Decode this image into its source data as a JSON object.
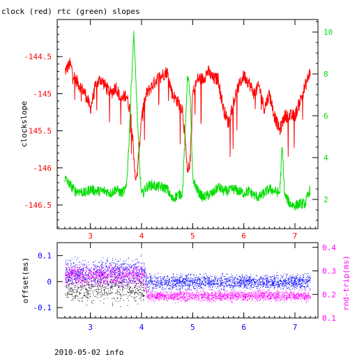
{
  "colors": {
    "red": "#ff0000",
    "green": "#00dd00",
    "blue": "#0000ff",
    "magenta": "#ff00ff",
    "black": "#000000"
  },
  "chart_data": [
    {
      "type": "line",
      "title": "clock (red) rtc (green) slopes",
      "ylabel": "clockslope",
      "xlim": [
        2.35,
        7.45
      ],
      "ylim": [
        -146.82,
        -144.0
      ],
      "y2lim": [
        0.6,
        10.6
      ],
      "x_ticks": [
        "3",
        "4",
        "5",
        "6",
        "7"
      ],
      "y_ticks": [
        "-144.5",
        "-145",
        "-145.5",
        "-146",
        "-146.5"
      ],
      "y2_ticks": [
        "2",
        "4",
        "6",
        "8",
        "10"
      ],
      "series": [
        {
          "color": "red",
          "axis": "left",
          "x": [
            2.5,
            2.6,
            2.7,
            2.8,
            2.9,
            3.0,
            3.1,
            3.2,
            3.3,
            3.4,
            3.5,
            3.6,
            3.7,
            3.8,
            3.85,
            3.9,
            3.95,
            4.0,
            4.1,
            4.2,
            4.3,
            4.4,
            4.5,
            4.6,
            4.7,
            4.8,
            4.85,
            4.9,
            4.95,
            5.0,
            5.1,
            5.2,
            5.3,
            5.4,
            5.5,
            5.6,
            5.7,
            5.8,
            5.9,
            6.0,
            6.1,
            6.2,
            6.3,
            6.4,
            6.5,
            6.6,
            6.7,
            6.8,
            6.9,
            7.0,
            7.1,
            7.2,
            7.3
          ],
          "y": [
            -144.7,
            -144.6,
            -144.8,
            -144.9,
            -145.0,
            -145.2,
            -144.9,
            -144.8,
            -144.9,
            -145.0,
            -144.9,
            -145.1,
            -145.0,
            -145.3,
            -145.9,
            -146.2,
            -145.8,
            -145.3,
            -145.0,
            -144.9,
            -144.8,
            -144.75,
            -144.7,
            -145.0,
            -145.1,
            -145.2,
            -145.6,
            -146.1,
            -145.9,
            -145.0,
            -144.8,
            -144.8,
            -144.7,
            -144.8,
            -144.8,
            -145.2,
            -145.4,
            -145.1,
            -144.9,
            -144.75,
            -144.85,
            -145.0,
            -144.9,
            -145.2,
            -145.0,
            -145.3,
            -145.5,
            -145.3,
            -145.3,
            -145.3,
            -145.1,
            -144.9,
            -144.7
          ]
        },
        {
          "color": "green",
          "axis": "right",
          "x": [
            2.5,
            2.6,
            2.7,
            2.8,
            2.9,
            3.0,
            3.1,
            3.2,
            3.3,
            3.4,
            3.5,
            3.6,
            3.7,
            3.75,
            3.8,
            3.85,
            3.9,
            3.95,
            4.0,
            4.1,
            4.2,
            4.3,
            4.4,
            4.5,
            4.6,
            4.7,
            4.8,
            4.85,
            4.9,
            4.95,
            5.0,
            5.1,
            5.2,
            5.3,
            5.4,
            5.5,
            5.6,
            5.7,
            5.8,
            5.9,
            6.0,
            6.1,
            6.2,
            6.3,
            6.4,
            6.5,
            6.6,
            6.7,
            6.75,
            6.8,
            6.9,
            7.0,
            7.1,
            7.2,
            7.3
          ],
          "y": [
            3.0,
            2.7,
            2.4,
            2.4,
            2.3,
            2.5,
            2.4,
            2.4,
            2.4,
            2.3,
            2.5,
            2.3,
            2.5,
            4.5,
            7.5,
            10.0,
            7.0,
            4.0,
            2.2,
            2.6,
            2.7,
            2.6,
            2.6,
            2.5,
            2.0,
            2.2,
            2.3,
            5.0,
            8.0,
            7.0,
            3.0,
            2.4,
            2.1,
            2.2,
            2.3,
            2.6,
            2.4,
            2.4,
            2.5,
            2.4,
            2.3,
            2.4,
            2.2,
            2.1,
            2.3,
            2.5,
            2.4,
            2.3,
            4.5,
            2.2,
            1.8,
            1.7,
            1.8,
            1.8,
            2.5
          ]
        }
      ]
    },
    {
      "type": "scatter",
      "ylabel": "offset(ms)",
      "y2label": "rnd-trip(ms)",
      "xlim": [
        2.35,
        7.45
      ],
      "ylim": [
        -0.14,
        0.15
      ],
      "y2lim": [
        0.1,
        0.42
      ],
      "x_ticks": [
        "3",
        "4",
        "5",
        "6",
        "7"
      ],
      "y_ticks": [
        "0.1",
        "0",
        "-0.1"
      ],
      "y2_ticks": [
        "0.4",
        "0.3",
        "0.2",
        "0.1"
      ],
      "series": [
        {
          "color": "blue",
          "axis": "left",
          "x": [
            2.5,
            4.05,
            4.1,
            7.3
          ],
          "center": [
            0.03,
            0.04,
            0.0,
            0.0
          ],
          "spread": [
            0.045,
            0.045,
            0.025,
            0.025
          ]
        },
        {
          "color": "magenta",
          "axis": "right",
          "x": [
            2.5,
            4.05,
            4.1,
            7.3
          ],
          "center": [
            0.28,
            0.28,
            0.195,
            0.195
          ],
          "spread": [
            0.04,
            0.04,
            0.02,
            0.02
          ]
        },
        {
          "color": "black",
          "axis": "left",
          "x": [
            2.5,
            4.05
          ],
          "center": [
            -0.03,
            -0.03
          ],
          "spread": [
            0.045,
            0.045
          ]
        }
      ]
    }
  ],
  "footer": {
    "text": "2010-05-02 info"
  }
}
